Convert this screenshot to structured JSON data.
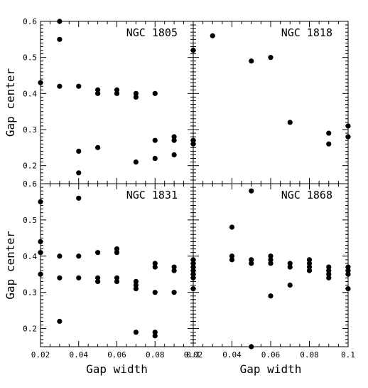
{
  "chart_data": [
    {
      "type": "scatter",
      "title": "NGC 1805",
      "xlabel": "",
      "ylabel": "Gap center",
      "xlim": [
        0.02,
        0.1
      ],
      "ylim": [
        0.15,
        0.6
      ],
      "x_ticks": [],
      "y_ticks": [
        "0.2",
        "0.3",
        "0.4",
        "0.5",
        "0.6"
      ],
      "points": [
        [
          0.02,
          0.43
        ],
        [
          0.03,
          0.6
        ],
        [
          0.03,
          0.55
        ],
        [
          0.03,
          0.42
        ],
        [
          0.04,
          0.42
        ],
        [
          0.04,
          0.24
        ],
        [
          0.04,
          0.18
        ],
        [
          0.05,
          0.41
        ],
        [
          0.05,
          0.4
        ],
        [
          0.05,
          0.25
        ],
        [
          0.06,
          0.41
        ],
        [
          0.06,
          0.4
        ],
        [
          0.07,
          0.4
        ],
        [
          0.07,
          0.39
        ],
        [
          0.07,
          0.21
        ],
        [
          0.08,
          0.4
        ],
        [
          0.08,
          0.27
        ],
        [
          0.08,
          0.22
        ],
        [
          0.09,
          0.28
        ],
        [
          0.09,
          0.27
        ],
        [
          0.09,
          0.23
        ]
      ]
    },
    {
      "type": "scatter",
      "title": "NGC 1818",
      "xlabel": "",
      "ylabel": "",
      "xlim": [
        0.02,
        0.1
      ],
      "ylim": [
        0.15,
        0.6
      ],
      "x_ticks": [],
      "y_ticks": [],
      "points": [
        [
          0.02,
          0.52
        ],
        [
          0.02,
          0.27
        ],
        [
          0.02,
          0.26
        ],
        [
          0.03,
          0.56
        ],
        [
          0.05,
          0.49
        ],
        [
          0.06,
          0.5
        ],
        [
          0.07,
          0.32
        ],
        [
          0.09,
          0.29
        ],
        [
          0.09,
          0.26
        ],
        [
          0.1,
          0.31
        ],
        [
          0.1,
          0.28
        ]
      ]
    },
    {
      "type": "scatter",
      "title": "NGC 1831",
      "xlabel": "Gap width",
      "ylabel": "Gap center",
      "xlim": [
        0.02,
        0.1
      ],
      "ylim": [
        0.15,
        0.6
      ],
      "x_ticks": [
        "0.02",
        "0.04",
        "0.06",
        "0.08",
        "0.1"
      ],
      "y_ticks": [
        "0.2",
        "0.3",
        "0.4",
        "0.5",
        "0.6"
      ],
      "points": [
        [
          0.02,
          0.55
        ],
        [
          0.02,
          0.44
        ],
        [
          0.02,
          0.41
        ],
        [
          0.02,
          0.35
        ],
        [
          0.03,
          0.4
        ],
        [
          0.03,
          0.34
        ],
        [
          0.03,
          0.22
        ],
        [
          0.04,
          0.56
        ],
        [
          0.04,
          0.4
        ],
        [
          0.04,
          0.34
        ],
        [
          0.05,
          0.41
        ],
        [
          0.05,
          0.34
        ],
        [
          0.05,
          0.33
        ],
        [
          0.06,
          0.42
        ],
        [
          0.06,
          0.41
        ],
        [
          0.06,
          0.34
        ],
        [
          0.06,
          0.33
        ],
        [
          0.07,
          0.33
        ],
        [
          0.07,
          0.32
        ],
        [
          0.07,
          0.31
        ],
        [
          0.07,
          0.19
        ],
        [
          0.08,
          0.38
        ],
        [
          0.08,
          0.37
        ],
        [
          0.08,
          0.3
        ],
        [
          0.08,
          0.19
        ],
        [
          0.08,
          0.18
        ],
        [
          0.09,
          0.37
        ],
        [
          0.09,
          0.36
        ],
        [
          0.09,
          0.3
        ]
      ]
    },
    {
      "type": "scatter",
      "title": "NGC 1868",
      "xlabel": "Gap width",
      "ylabel": "",
      "xlim": [
        0.02,
        0.1
      ],
      "ylim": [
        0.15,
        0.6
      ],
      "x_ticks": [
        "0.02",
        "0.04",
        "0.06",
        "0.08",
        "0.1"
      ],
      "y_ticks": [],
      "points": [
        [
          0.02,
          0.39
        ],
        [
          0.02,
          0.38
        ],
        [
          0.02,
          0.37
        ],
        [
          0.02,
          0.36
        ],
        [
          0.02,
          0.35
        ],
        [
          0.02,
          0.34
        ],
        [
          0.02,
          0.31
        ],
        [
          0.04,
          0.48
        ],
        [
          0.04,
          0.4
        ],
        [
          0.04,
          0.39
        ],
        [
          0.05,
          0.58
        ],
        [
          0.05,
          0.39
        ],
        [
          0.05,
          0.38
        ],
        [
          0.05,
          0.15
        ],
        [
          0.06,
          0.4
        ],
        [
          0.06,
          0.39
        ],
        [
          0.06,
          0.38
        ],
        [
          0.06,
          0.29
        ],
        [
          0.07,
          0.38
        ],
        [
          0.07,
          0.37
        ],
        [
          0.07,
          0.32
        ],
        [
          0.08,
          0.39
        ],
        [
          0.08,
          0.38
        ],
        [
          0.08,
          0.37
        ],
        [
          0.08,
          0.36
        ],
        [
          0.09,
          0.37
        ],
        [
          0.09,
          0.36
        ],
        [
          0.09,
          0.35
        ],
        [
          0.09,
          0.34
        ],
        [
          0.1,
          0.37
        ],
        [
          0.1,
          0.36
        ],
        [
          0.1,
          0.35
        ],
        [
          0.1,
          0.31
        ]
      ]
    }
  ]
}
